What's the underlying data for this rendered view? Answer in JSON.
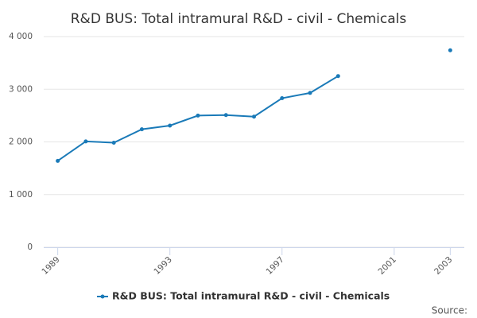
{
  "chart_data": {
    "type": "line",
    "title": "R&D BUS: Total intramural R&D - civil - Chemicals",
    "x": [
      1989,
      1990,
      1991,
      1992,
      1993,
      1994,
      1995,
      1996,
      1997,
      1998,
      1999,
      2000,
      2001,
      2002,
      2003
    ],
    "series": [
      {
        "name": "R&D BUS: Total intramural R&D - civil - Chemicals",
        "color": "#1a7ab8",
        "values": [
          1640,
          2010,
          1985,
          2240,
          2310,
          2500,
          2510,
          2480,
          2830,
          2930,
          3250,
          null,
          null,
          null,
          3740
        ]
      }
    ],
    "xlim": [
      1988.5,
      2003.5
    ],
    "xticks": [
      1989,
      1993,
      1997,
      2001,
      2003
    ],
    "ylim": [
      0,
      4000
    ],
    "yticks": [
      0,
      {
        "value": 1000,
        "label": "1 000"
      },
      {
        "value": 2000,
        "label": "2 000"
      },
      {
        "value": 3000,
        "label": "3 000"
      },
      {
        "value": 4000,
        "label": "4 000"
      }
    ],
    "grid": true,
    "legend": "bottom",
    "source": "Source:"
  }
}
